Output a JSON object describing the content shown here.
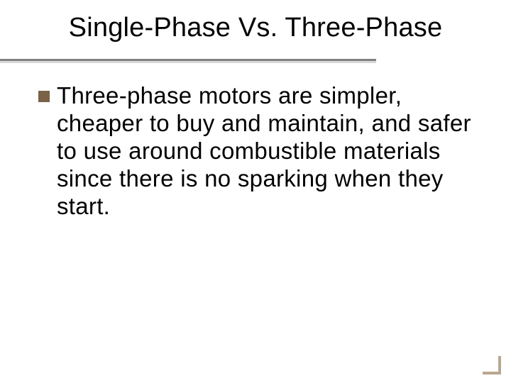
{
  "slide": {
    "title": "Single-Phase Vs. Three-Phase",
    "bullets": [
      {
        "text": "Three-phase motors are simpler, cheaper to buy and maintain, and safer to use around combustible materials since there is no sparking when they start."
      }
    ]
  },
  "style": {
    "title_color": "#000000",
    "title_fontsize": 38,
    "body_color": "#000000",
    "body_fontsize": 33,
    "bullet_color": "#7a6248",
    "rule_color": "#808080",
    "rule_shadow_color": "#d9d9d9",
    "corner_color": "#b9a88f",
    "background_color": "#ffffff"
  }
}
